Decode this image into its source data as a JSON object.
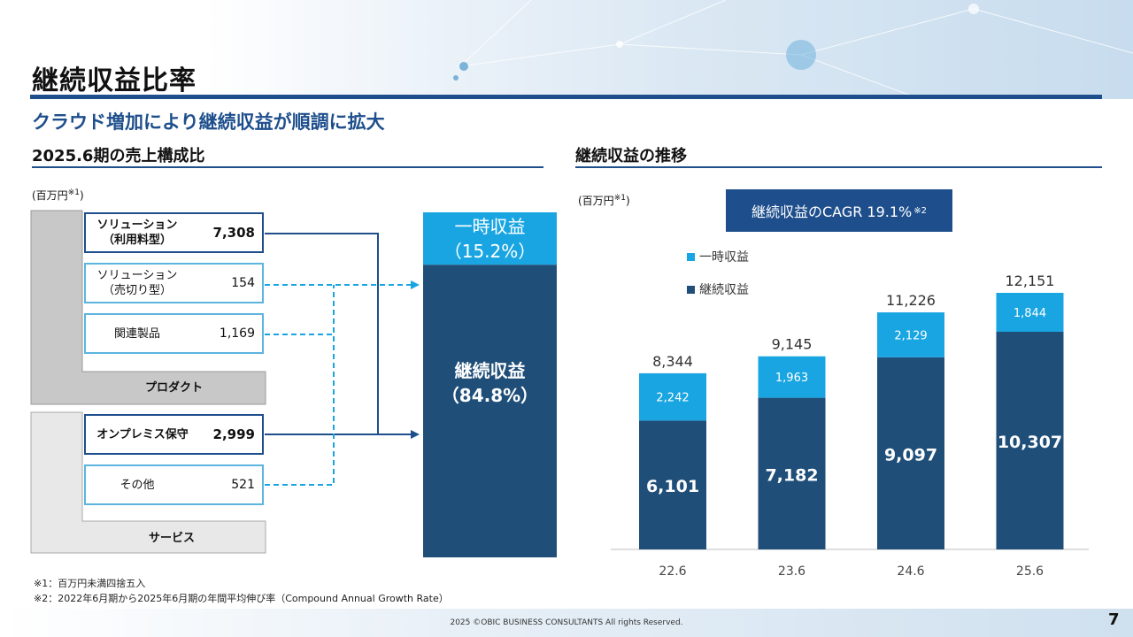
{
  "header": {
    "title": "継続収益比率",
    "subtitle": "クラウド増加により継続収益が順調に拡大"
  },
  "left_section": {
    "heading": "2025.6期の売上構成比",
    "unit": "(百万円",
    "unit_note": "※1",
    "unit_close": ")",
    "rows": [
      {
        "label": "ソリューション\n（利用料型）",
        "value": "7,308",
        "style": "bold",
        "flow": "recurring"
      },
      {
        "label": "ソリューション\n（売切り型）",
        "value": "154",
        "style": "light",
        "flow": "one_time"
      },
      {
        "label": "関連製品",
        "value": "1,169",
        "style": "light",
        "flow": "one_time"
      },
      {
        "label": "オンプレミス保守",
        "value": "2,999",
        "style": "bold",
        "flow": "recurring"
      },
      {
        "label": "その他",
        "value": "521",
        "style": "light",
        "flow": "one_time"
      }
    ],
    "groups": {
      "product": "プロダクト",
      "service": "サービス"
    },
    "stack": {
      "one_time": {
        "label": "一時収益",
        "pct": "（15.2%）",
        "share": 0.152
      },
      "recurring": {
        "label": "継続収益",
        "pct": "（84.8%）",
        "share": 0.848
      }
    }
  },
  "right_section": {
    "heading": "継続収益の推移",
    "unit": "(百万円",
    "unit_note": "※1",
    "unit_close": ")",
    "cagr": {
      "text": "継続収益のCAGR 19.1%",
      "note": "※2"
    }
  },
  "colors": {
    "navy": "#1e4f8c",
    "recurring": "#1f4e79",
    "one_time": "#19a5e1",
    "light_border": "#5cb4df",
    "gray_dark": "#c8c8c8",
    "gray_light": "#e8e8e8"
  },
  "chart_data": {
    "type": "bar",
    "stacked": true,
    "categories": [
      "22.6",
      "23.6",
      "24.6",
      "25.6"
    ],
    "series": [
      {
        "name": "継続収益",
        "values": [
          6101,
          7182,
          9097,
          10307
        ],
        "color": "#1f4e79"
      },
      {
        "name": "一時収益",
        "values": [
          2242,
          1963,
          2129,
          1844
        ],
        "color": "#19a5e1"
      }
    ],
    "totals": [
      "8,344",
      "9,145",
      "11,226",
      "12,151"
    ],
    "ylim": [
      0,
      12151
    ],
    "legend_placement": "top-left",
    "grid": false
  },
  "footnotes": [
    "※1：百万円未満四捨五入",
    "※2：2022年6月期から2025年6月期の年間平均伸び率（Compound Annual Growth Rate）"
  ],
  "footer": {
    "copyright": "2025 ©OBIC BUSINESS CONSULTANTS All rights Reserved.",
    "page": "7"
  }
}
